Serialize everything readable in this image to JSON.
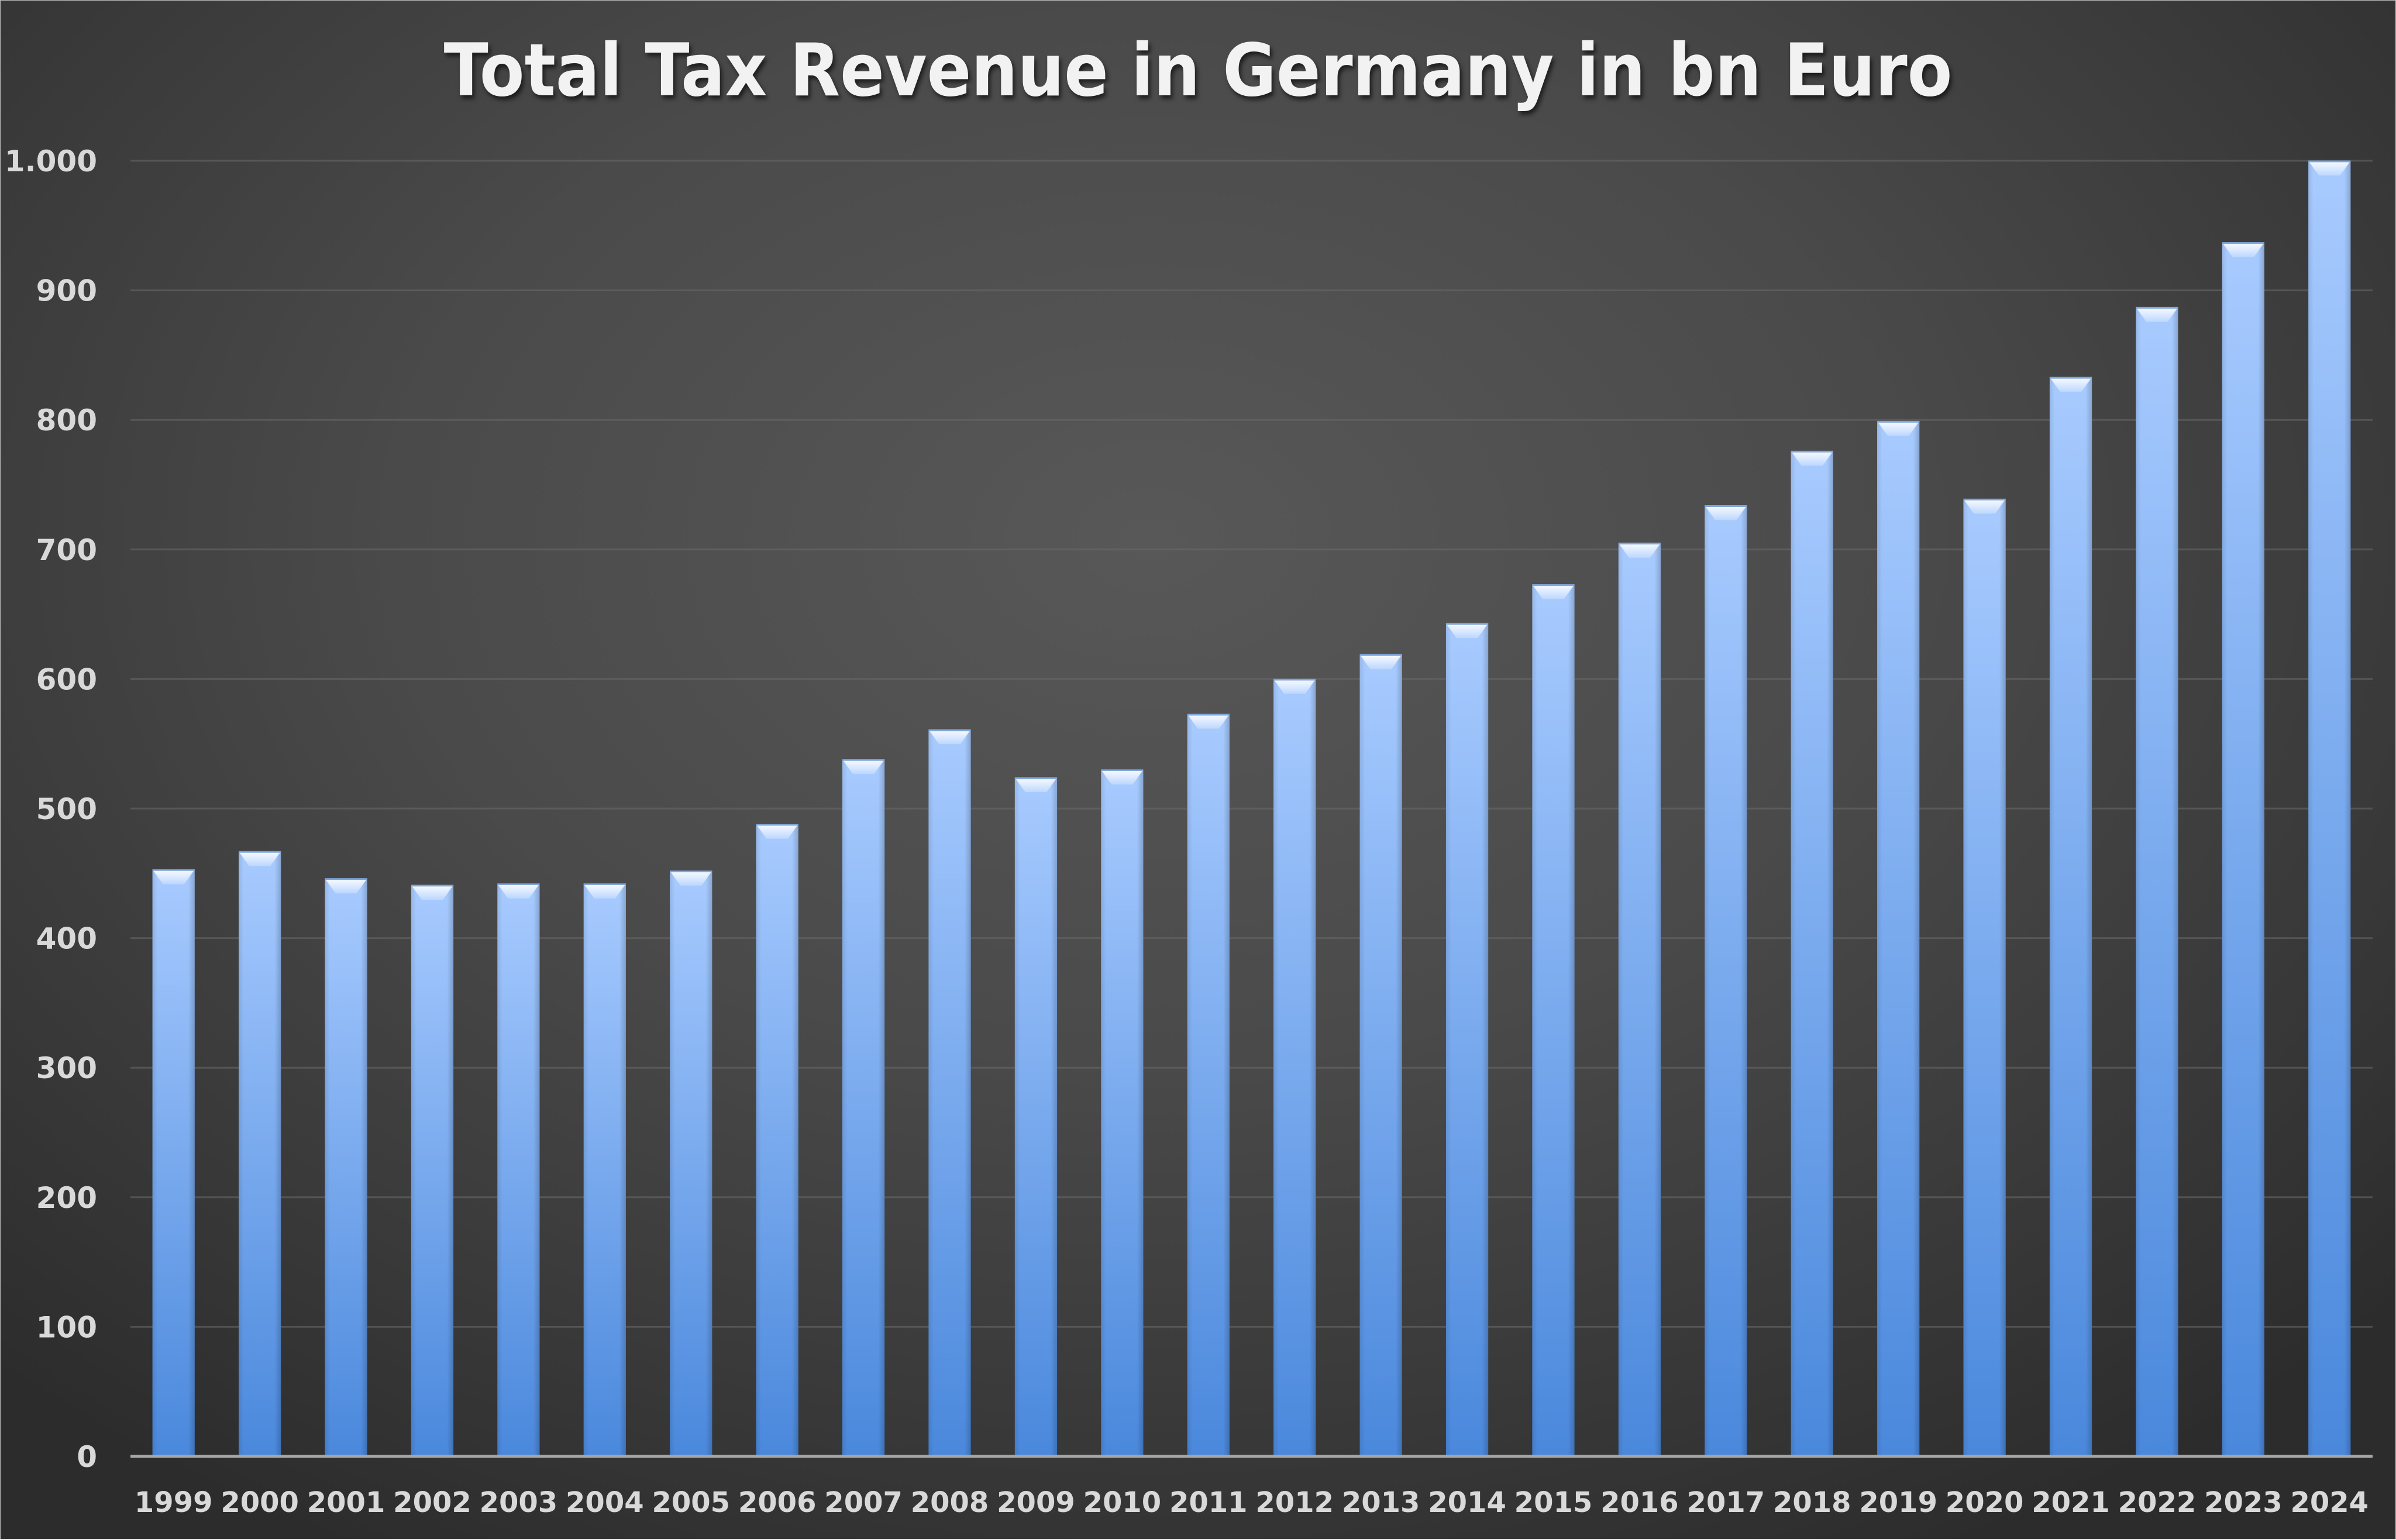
{
  "chart_data": {
    "type": "bar",
    "title": "Total Tax Revenue in Germany in bn Euro",
    "xlabel": "",
    "ylabel": "",
    "ylim": [
      0,
      1000
    ],
    "yticks": [
      0,
      100,
      200,
      300,
      400,
      500,
      600,
      700,
      800,
      900,
      1000
    ],
    "ytick_labels": [
      "0",
      "100",
      "200",
      "300",
      "400",
      "500",
      "600",
      "700",
      "800",
      "900",
      "1.000"
    ],
    "grid": true,
    "legend": "none",
    "categories": [
      "1999",
      "2000",
      "2001",
      "2002",
      "2003",
      "2004",
      "2005",
      "2006",
      "2007",
      "2008",
      "2009",
      "2010",
      "2011",
      "2012",
      "2013",
      "2014",
      "2015",
      "2016",
      "2017",
      "2018",
      "2019",
      "2020",
      "2021",
      "2022",
      "2023",
      "2024"
    ],
    "values": [
      453,
      467,
      446,
      441,
      442,
      442,
      452,
      488,
      538,
      561,
      524,
      530,
      573,
      600,
      619,
      643,
      673,
      705,
      734,
      776,
      799,
      739,
      833,
      887,
      937,
      1000
    ],
    "colors": {
      "bar_top": "#a8cbff",
      "bar_bottom": "#4a88dc",
      "text": "#d9d9d9",
      "title": "#f2f2f2"
    }
  }
}
